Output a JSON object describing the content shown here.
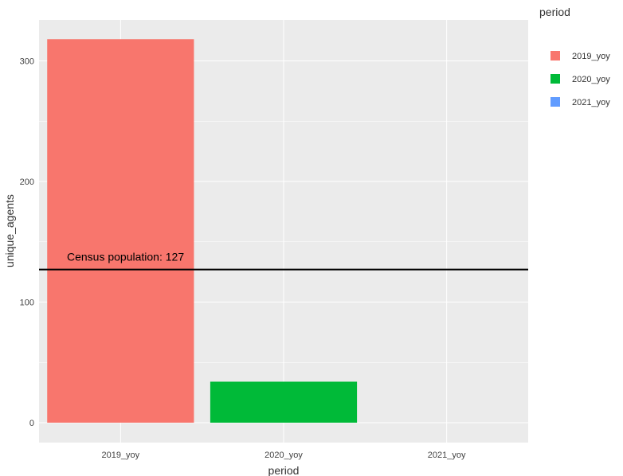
{
  "chart_data": {
    "type": "bar",
    "categories": [
      "2019_yoy",
      "2020_yoy",
      "2021_yoy"
    ],
    "values": [
      318,
      34,
      0
    ],
    "colors": [
      "#f8766d",
      "#00ba38",
      "#619cff"
    ],
    "xlabel": "period",
    "ylabel": "unique_agents",
    "ylim": [
      -16.5,
      334
    ],
    "yticks": [
      0,
      100,
      200,
      300
    ],
    "grid": true,
    "legend": {
      "title": "period",
      "placement": "right",
      "entries": [
        "2019_yoy",
        "2020_yoy",
        "2021_yoy"
      ]
    },
    "reference_line": {
      "y": 127,
      "label": "Census population: 127",
      "color": "#000000"
    },
    "background": "#ebebeb"
  }
}
